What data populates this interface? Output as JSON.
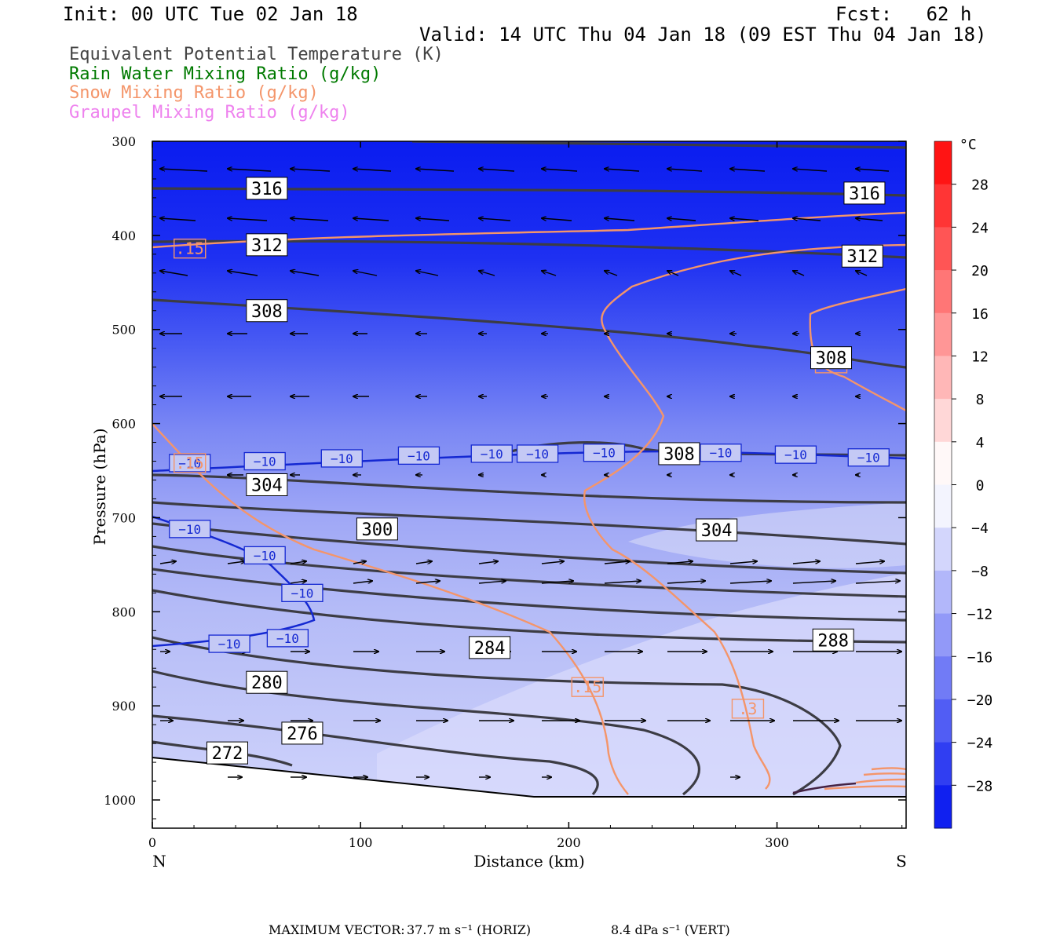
{
  "header": {
    "init": "Init: 00 UTC Tue 02 Jan 18",
    "fcst": "Fcst:   62 h",
    "valid": "Valid: 14 UTC Thu 04 Jan 18 (09 EST Thu 04 Jan 18)"
  },
  "legend": [
    {
      "label": "Equivalent Potential Temperature (K)",
      "color": "#444444"
    },
    {
      "label": "Rain Water Mixing Ratio (g/kg)",
      "color": "#007a00"
    },
    {
      "label": "Snow Mixing Ratio (g/kg)",
      "color": "#f4956a"
    },
    {
      "label": "Graupel Mixing Ratio (g/kg)",
      "color": "#ee82ee"
    }
  ],
  "chart_data": {
    "type": "cross-section",
    "xlabel": "Distance (km)",
    "ylabel": "Pressure (hPa)",
    "x_ticks": [
      0,
      100,
      200,
      300
    ],
    "y_ticks": [
      300,
      400,
      500,
      600,
      700,
      800,
      900,
      1000
    ],
    "xlim": [
      0,
      362
    ],
    "ylim": [
      1030,
      300
    ],
    "x_end_labels": {
      "left": "N",
      "right": "S"
    },
    "colorbar": {
      "unit": "°C",
      "tick_labels": [
        "28",
        "24",
        "20",
        "16",
        "12",
        "8",
        "4",
        "0",
        "−4",
        "−8",
        "−12",
        "−16",
        "−20",
        "−24",
        "−28"
      ],
      "range": [
        -32,
        32
      ],
      "cold_color": "#0000ff",
      "warm_color": "#ff0000"
    },
    "theta_e_labels": [
      {
        "text": "316",
        "x": 55,
        "p": 350
      },
      {
        "text": "316",
        "x": 342,
        "p": 355
      },
      {
        "text": "312",
        "x": 55,
        "p": 410
      },
      {
        "text": "312",
        "x": 341,
        "p": 422
      },
      {
        "text": "308",
        "x": 55,
        "p": 480
      },
      {
        "text": "308",
        "x": 326,
        "p": 530
      },
      {
        "text": "308",
        "x": 253,
        "p": 632
      },
      {
        "text": "304",
        "x": 55,
        "p": 665
      },
      {
        "text": "300",
        "x": 108,
        "p": 712
      },
      {
        "text": "304",
        "x": 271,
        "p": 713
      },
      {
        "text": "284",
        "x": 162,
        "p": 838
      },
      {
        "text": "288",
        "x": 327,
        "p": 830
      },
      {
        "text": "280",
        "x": 55,
        "p": 875
      },
      {
        "text": "276",
        "x": 72,
        "p": 929
      },
      {
        "text": "272",
        "x": 36,
        "p": 950
      }
    ],
    "temp_minus10_labels": [
      {
        "text": "−10",
        "x": 18,
        "p": 642
      },
      {
        "text": "−10",
        "x": 54,
        "p": 640
      },
      {
        "text": "−10",
        "x": 91,
        "p": 637
      },
      {
        "text": "−10",
        "x": 128,
        "p": 634
      },
      {
        "text": "−10",
        "x": 163,
        "p": 632
      },
      {
        "text": "−10",
        "x": 185,
        "p": 632
      },
      {
        "text": "−10",
        "x": 217,
        "p": 631
      },
      {
        "text": "−10",
        "x": 273,
        "p": 631
      },
      {
        "text": "−10",
        "x": 309,
        "p": 633
      },
      {
        "text": "−10",
        "x": 344,
        "p": 636
      },
      {
        "text": "−10",
        "x": 18,
        "p": 712
      },
      {
        "text": "−10",
        "x": 54,
        "p": 740
      },
      {
        "text": "−10",
        "x": 72,
        "p": 780
      },
      {
        "text": "−10",
        "x": 37,
        "p": 834
      },
      {
        "text": "−10",
        "x": 65,
        "p": 828
      }
    ],
    "snow_labels": [
      {
        "text": ".15",
        "x": 18,
        "p": 414
      },
      {
        "text": ".15",
        "x": 18,
        "p": 642
      },
      {
        "text": ".15",
        "x": 209,
        "p": 880
      },
      {
        "text": ".3",
        "x": 286,
        "p": 903
      },
      {
        "text": ".3",
        "x": 326,
        "p": 536
      }
    ]
  },
  "footer": {
    "max_vector_label": "MAXIMUM VECTOR:",
    "horiz": "37.7 m s⁻¹ (HORIZ)",
    "vert": "8.4 dPa s⁻¹ (VERT)"
  }
}
